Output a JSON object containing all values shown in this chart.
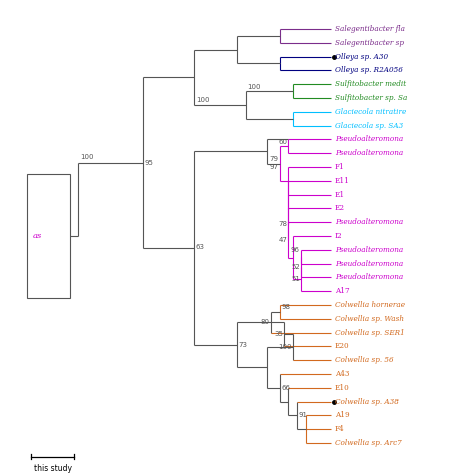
{
  "background": "#ffffff",
  "scale_bar_label": "this study",
  "taxa": [
    {
      "name": "Salegentibacter fla",
      "color": "#7B2D8B",
      "y": 0,
      "italic": true,
      "marker": false
    },
    {
      "name": "Salegentibacter sp",
      "color": "#7B2D8B",
      "y": 1,
      "italic": true,
      "marker": false
    },
    {
      "name": "Olleya sp. A30",
      "color": "#000080",
      "y": 2,
      "italic": true,
      "marker": true
    },
    {
      "name": "Olleya sp. R2A056",
      "color": "#000080",
      "y": 3,
      "italic": true,
      "marker": false
    },
    {
      "name": "Sulfitobacter medit",
      "color": "#228B22",
      "y": 4,
      "italic": true,
      "marker": false
    },
    {
      "name": "Sulfitobacter sp. Sa",
      "color": "#228B22",
      "y": 5,
      "italic": true,
      "marker": false
    },
    {
      "name": "Glaciecola nitratire",
      "color": "#00BFFF",
      "y": 6,
      "italic": true,
      "marker": false
    },
    {
      "name": "Glaciecola sp. SA3",
      "color": "#00BFFF",
      "y": 7,
      "italic": true,
      "marker": false
    },
    {
      "name": "Pseudoalteromona",
      "color": "#CC00CC",
      "y": 8,
      "italic": true,
      "marker": false
    },
    {
      "name": "Pseudoalteromona",
      "color": "#CC00CC",
      "y": 9,
      "italic": true,
      "marker": false
    },
    {
      "name": "F1",
      "color": "#CC00CC",
      "y": 10,
      "italic": false,
      "marker": false
    },
    {
      "name": "E11",
      "color": "#CC00CC",
      "y": 11,
      "italic": false,
      "marker": false
    },
    {
      "name": "E1",
      "color": "#CC00CC",
      "y": 12,
      "italic": false,
      "marker": false
    },
    {
      "name": "E2",
      "color": "#CC00CC",
      "y": 13,
      "italic": false,
      "marker": false
    },
    {
      "name": "Pseudoalteromona",
      "color": "#CC00CC",
      "y": 14,
      "italic": true,
      "marker": false
    },
    {
      "name": "I2",
      "color": "#CC00CC",
      "y": 15,
      "italic": false,
      "marker": false
    },
    {
      "name": "Pseudoalteromona",
      "color": "#CC00CC",
      "y": 16,
      "italic": true,
      "marker": false
    },
    {
      "name": "Pseudoalteromona",
      "color": "#CC00CC",
      "y": 17,
      "italic": true,
      "marker": false
    },
    {
      "name": "Pseudoalteromona",
      "color": "#CC00CC",
      "y": 18,
      "italic": true,
      "marker": false
    },
    {
      "name": "A17",
      "color": "#CC00CC",
      "y": 19,
      "italic": false,
      "marker": false
    },
    {
      "name": "Colwellia hornerae",
      "color": "#D2691E",
      "y": 20,
      "italic": true,
      "marker": false
    },
    {
      "name": "Colwellia sp. Wash",
      "color": "#D2691E",
      "y": 21,
      "italic": true,
      "marker": false
    },
    {
      "name": "Colwellia sp. SER1",
      "color": "#D2691E",
      "y": 22,
      "italic": true,
      "marker": false
    },
    {
      "name": "E20",
      "color": "#D2691E",
      "y": 23,
      "italic": false,
      "marker": false
    },
    {
      "name": "Colwellia sp. 56",
      "color": "#D2691E",
      "y": 24,
      "italic": true,
      "marker": false
    },
    {
      "name": "A43",
      "color": "#D2691E",
      "y": 25,
      "italic": false,
      "marker": false
    },
    {
      "name": "E10",
      "color": "#D2691E",
      "y": 26,
      "italic": false,
      "marker": false
    },
    {
      "name": "Colwellia sp. A38",
      "color": "#D2691E",
      "y": 27,
      "italic": true,
      "marker": true
    },
    {
      "name": "A19",
      "color": "#D2691E",
      "y": 28,
      "italic": false,
      "marker": false
    },
    {
      "name": "F4",
      "color": "#D2691E",
      "y": 29,
      "italic": false,
      "marker": false
    },
    {
      "name": "Colwellia sp. Arc7",
      "color": "#D2691E",
      "y": 30,
      "italic": true,
      "marker": false
    }
  ],
  "outgroup_label": "as",
  "outgroup_color": "#CC00CC",
  "tree_color": "#555555",
  "bootstrap_color": "#555555",
  "bootstrap_fontsize": 5.0,
  "label_fontsize": 5.2
}
